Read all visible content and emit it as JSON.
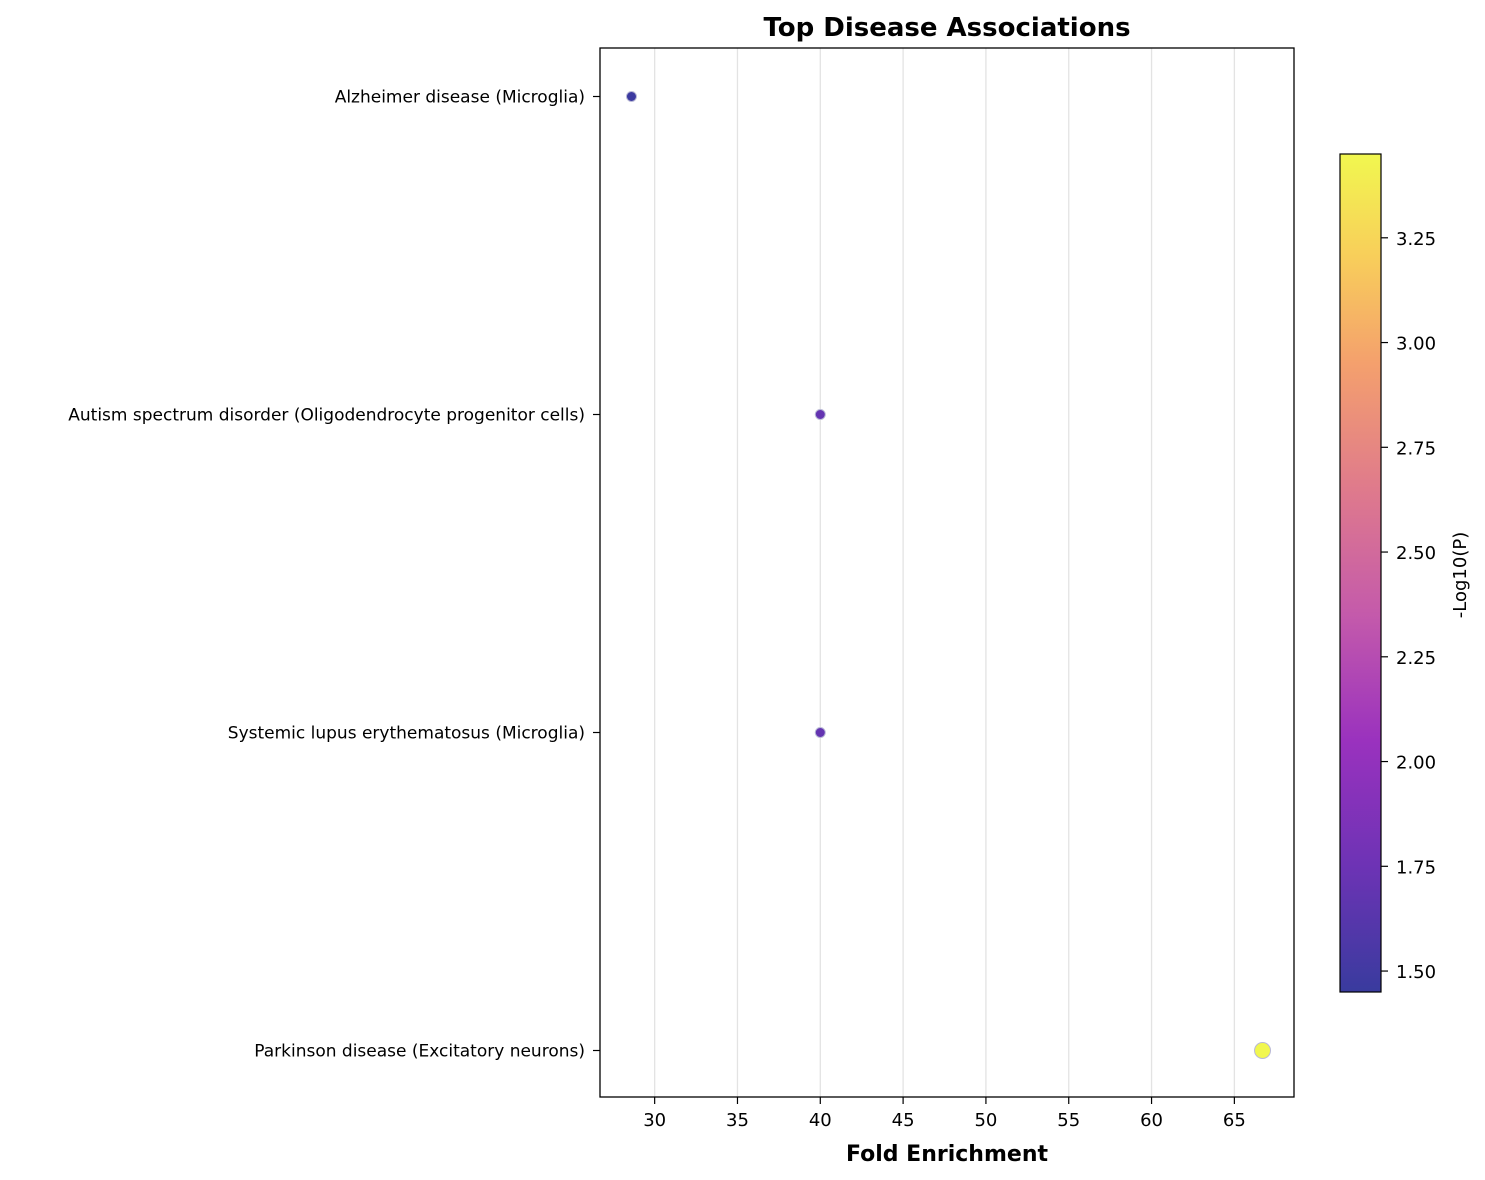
{
  "chart_data": {
    "type": "scatter",
    "title": "Top Disease Associations",
    "xlabel": "Fold Enrichment",
    "ylabel": "",
    "xlim": [
      26.7,
      68.6
    ],
    "xticks": [
      30,
      35,
      40,
      45,
      50,
      55,
      60,
      65
    ],
    "grid": "vertical",
    "categories": [
      "Alzheimer disease (Microglia)",
      "Autism spectrum disorder (Oligodendrocyte progenitor cells)",
      "Systemic lupus erythematosus (Microglia)",
      "Parkinson disease (Excitatory neurons)"
    ],
    "points": [
      {
        "category": "Alzheimer disease (Microglia)",
        "x": 28.6,
        "color_value": 1.47,
        "size": 1
      },
      {
        "category": "Autism spectrum disorder (Oligodendrocyte progenitor cells)",
        "x": 40.0,
        "color_value": 1.7,
        "size": 1
      },
      {
        "category": "Systemic lupus erythematosus (Microglia)",
        "x": 40.0,
        "color_value": 1.7,
        "size": 1
      },
      {
        "category": "Parkinson disease (Excitatory neurons)",
        "x": 66.7,
        "color_value": 3.45,
        "size": 1.6
      }
    ],
    "colorbar": {
      "label": "-Log10(P)",
      "colormap": "plasma",
      "range": [
        1.45,
        3.45
      ],
      "ticks": [
        "1.50",
        "1.75",
        "2.00",
        "2.25",
        "2.50",
        "2.75",
        "3.00",
        "3.25"
      ]
    }
  }
}
